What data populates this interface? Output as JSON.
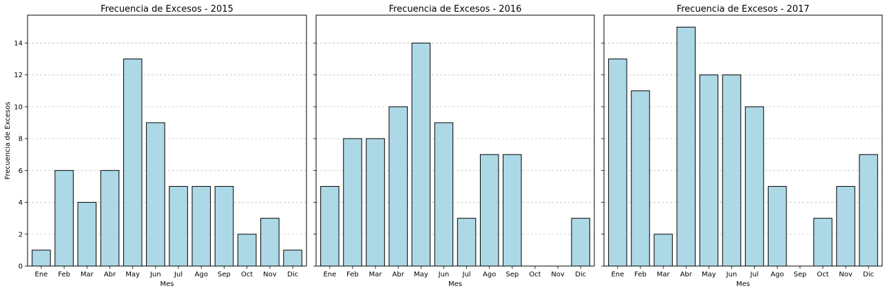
{
  "chart_data": [
    {
      "type": "bar",
      "title": "Frecuencia de Excesos - 2015",
      "xlabel": "Mes",
      "ylabel": "Frecuencia de Excesos",
      "categories": [
        "Ene",
        "Feb",
        "Mar",
        "Abr",
        "May",
        "Jun",
        "Jul",
        "Ago",
        "Sep",
        "Oct",
        "Nov",
        "Dic"
      ],
      "values": [
        1,
        6,
        4,
        6,
        13,
        9,
        5,
        5,
        5,
        2,
        3,
        1
      ],
      "ylim": [
        0,
        15.75
      ],
      "yticks": [
        0,
        2,
        4,
        6,
        8,
        10,
        12,
        14
      ],
      "grid": "y-dashed",
      "bar_color": "#add8e6",
      "edge_color": "#000000"
    },
    {
      "type": "bar",
      "title": "Frecuencia de Excesos - 2016",
      "xlabel": "Mes",
      "ylabel": "",
      "categories": [
        "Ene",
        "Feb",
        "Mar",
        "Abr",
        "May",
        "Jun",
        "Jul",
        "Ago",
        "Sep",
        "Oct",
        "Nov",
        "Dic"
      ],
      "values": [
        5,
        8,
        8,
        10,
        14,
        9,
        3,
        7,
        7,
        0,
        0,
        3
      ],
      "ylim": [
        0,
        15.75
      ],
      "yticks": [
        0,
        2,
        4,
        6,
        8,
        10,
        12,
        14
      ],
      "grid": "y-dashed",
      "bar_color": "#add8e6",
      "edge_color": "#000000"
    },
    {
      "type": "bar",
      "title": "Frecuencia de Excesos - 2017",
      "xlabel": "Mes",
      "ylabel": "",
      "categories": [
        "Ene",
        "Feb",
        "Mar",
        "Abr",
        "May",
        "Jun",
        "Jul",
        "Ago",
        "Sep",
        "Oct",
        "Nov",
        "Dic"
      ],
      "values": [
        13,
        11,
        2,
        15,
        12,
        12,
        10,
        5,
        0,
        3,
        5,
        7
      ],
      "ylim": [
        0,
        15.75
      ],
      "yticks": [
        0,
        2,
        4,
        6,
        8,
        10,
        12,
        14
      ],
      "grid": "y-dashed",
      "bar_color": "#add8e6",
      "edge_color": "#000000"
    }
  ]
}
